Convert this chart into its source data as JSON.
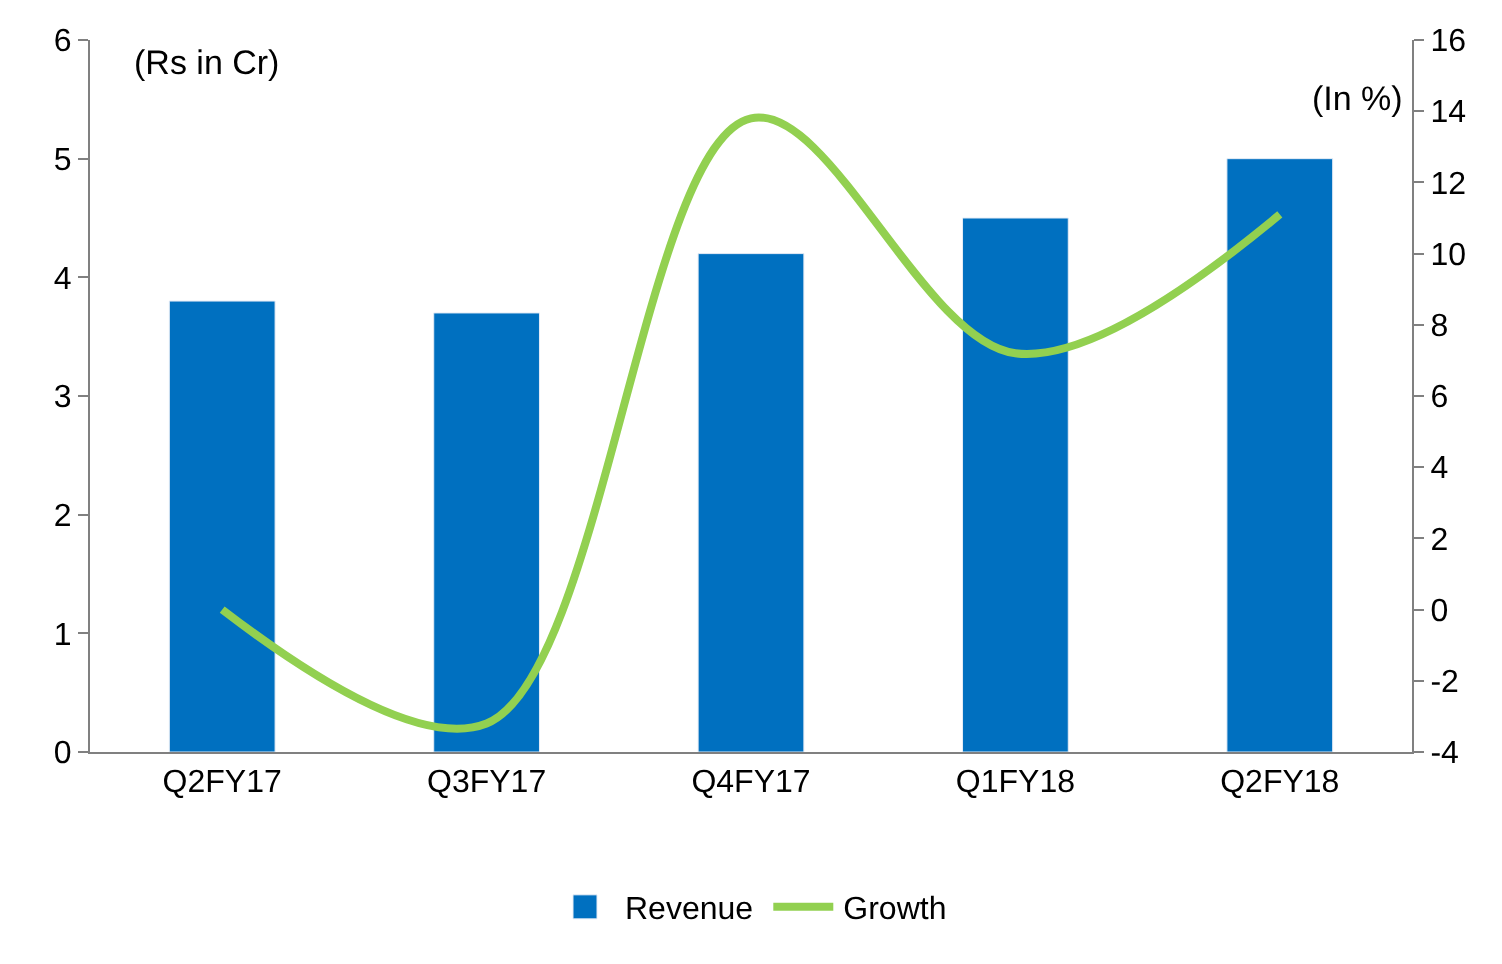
{
  "chart_data": {
    "type": "bar",
    "ylabel": "(Rs in Cr)",
    "y2label": "(In %)",
    "categories": [
      "Q2FY17",
      "Q3FY17",
      "Q4FY17",
      "Q1FY18",
      "Q2FY18"
    ],
    "series": [
      {
        "name": "Revenue",
        "color": "#0070c0",
        "values": [
          3.8,
          3.7,
          4.2,
          4.5,
          5.0
        ]
      },
      {
        "name": "Growth",
        "type": "line",
        "axis": "y2",
        "color": "#92d050",
        "values": [
          0,
          -3.2,
          13.8,
          7.2,
          11.1
        ]
      }
    ],
    "ylim": [
      0,
      6
    ],
    "yticks": [
      0,
      1,
      2,
      3,
      4,
      5,
      6
    ],
    "y2lim": [
      -4,
      16
    ],
    "y2ticks": [
      -4,
      -2,
      0,
      2,
      4,
      6,
      8,
      10,
      12,
      14,
      16
    ],
    "legend": "bottom",
    "marker": "none"
  }
}
